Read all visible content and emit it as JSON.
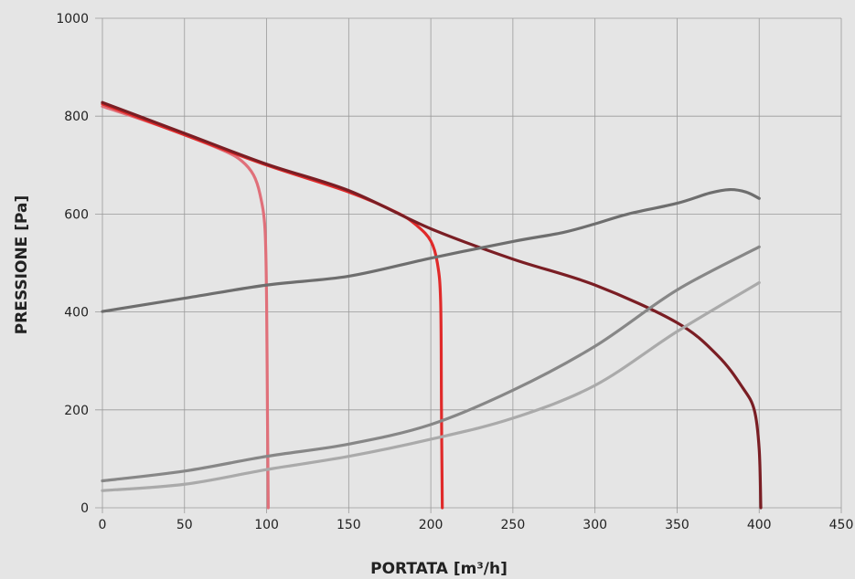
{
  "chart_data": {
    "type": "line",
    "title": "",
    "xlabel": "PORTATA [m³/h]",
    "ylabel": "PRESSIONE [Pa]",
    "xlim": [
      0,
      450
    ],
    "ylim": [
      0,
      1000
    ],
    "xticks": [
      0,
      50,
      100,
      150,
      200,
      250,
      300,
      350,
      400,
      450
    ],
    "yticks": [
      0,
      200,
      400,
      600,
      800,
      1000
    ],
    "grid": true,
    "series": [
      {
        "color": "#e0707a",
        "points": [
          [
            0,
            820
          ],
          [
            25,
            792
          ],
          [
            50,
            762
          ],
          [
            75,
            728
          ],
          [
            85,
            708
          ],
          [
            92,
            680
          ],
          [
            96,
            640
          ],
          [
            99,
            570
          ],
          [
            100,
            420
          ],
          [
            100.5,
            200
          ],
          [
            101,
            0
          ]
        ]
      },
      {
        "color": "#e02a2a",
        "points": [
          [
            0,
            825
          ],
          [
            50,
            762
          ],
          [
            100,
            700
          ],
          [
            150,
            645
          ],
          [
            180,
            602
          ],
          [
            192,
            575
          ],
          [
            200,
            545
          ],
          [
            204,
            500
          ],
          [
            206,
            420
          ],
          [
            206.5,
            200
          ],
          [
            207,
            0
          ]
        ]
      },
      {
        "color": "#7a1e24",
        "points": [
          [
            0,
            828
          ],
          [
            50,
            765
          ],
          [
            100,
            702
          ],
          [
            150,
            648
          ],
          [
            200,
            570
          ],
          [
            250,
            508
          ],
          [
            300,
            455
          ],
          [
            350,
            378
          ],
          [
            375,
            310
          ],
          [
            390,
            245
          ],
          [
            397,
            200
          ],
          [
            400,
            120
          ],
          [
            401,
            0
          ]
        ]
      },
      {
        "color": "#6e6e6e",
        "points": [
          [
            0,
            401
          ],
          [
            50,
            428
          ],
          [
            100,
            455
          ],
          [
            150,
            473
          ],
          [
            200,
            510
          ],
          [
            250,
            544
          ],
          [
            280,
            562
          ],
          [
            300,
            580
          ],
          [
            320,
            600
          ],
          [
            350,
            622
          ],
          [
            370,
            643
          ],
          [
            382,
            650
          ],
          [
            392,
            645
          ],
          [
            400,
            632
          ]
        ]
      },
      {
        "color": "#878787",
        "points": [
          [
            0,
            55
          ],
          [
            50,
            75
          ],
          [
            100,
            105
          ],
          [
            150,
            130
          ],
          [
            200,
            170
          ],
          [
            250,
            240
          ],
          [
            300,
            330
          ],
          [
            350,
            445
          ],
          [
            400,
            533
          ]
        ]
      },
      {
        "color": "#aaaaaa",
        "points": [
          [
            0,
            35
          ],
          [
            50,
            48
          ],
          [
            100,
            78
          ],
          [
            150,
            105
          ],
          [
            200,
            140
          ],
          [
            250,
            183
          ],
          [
            300,
            250
          ],
          [
            350,
            360
          ],
          [
            400,
            460
          ]
        ]
      }
    ]
  }
}
